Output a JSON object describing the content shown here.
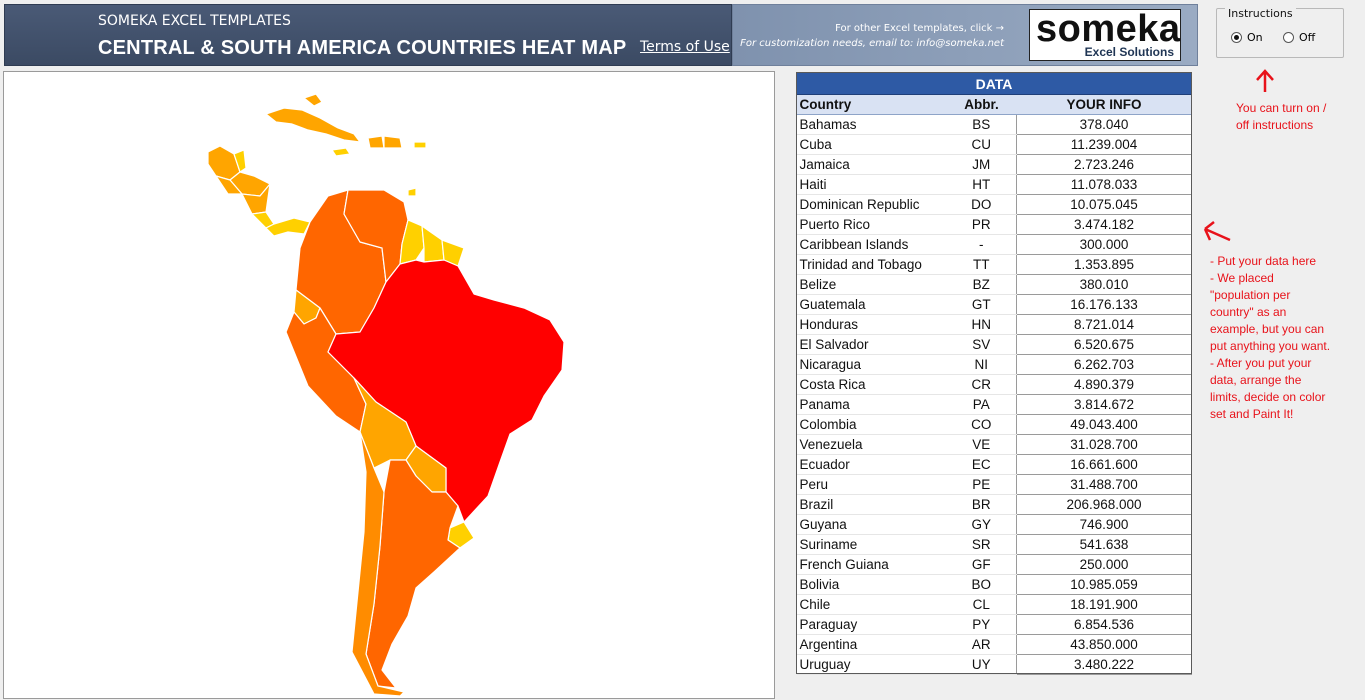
{
  "header": {
    "subtitle": "SOMEKA EXCEL TEMPLATES",
    "title": "CENTRAL & SOUTH AMERICA COUNTRIES HEAT MAP",
    "terms_label": "Terms of Use",
    "promo_line1": "For other Excel templates, click →",
    "promo_line2": "For customization needs, email to: info@someka.net",
    "logo_word": "someka",
    "logo_sub": "Excel Solutions"
  },
  "instructions": {
    "legend": "Instructions",
    "on_label": "On",
    "off_label": "Off",
    "selected": "On"
  },
  "notes": {
    "toggle_note_line1": "You can turn on /",
    "toggle_note_line2": "off instructions",
    "data_note_lines": [
      "- Put your data here",
      "- We placed",
      "\"population per",
      "country\" as an",
      "example, but you can",
      "put anything you want.",
      "- After you put your",
      "data, arrange the",
      "limits, decide on color",
      "set and Paint It!"
    ]
  },
  "table": {
    "title": "DATA",
    "headers": {
      "country": "Country",
      "abbr": "Abbr.",
      "info": "YOUR INFO"
    },
    "rows": [
      {
        "country": "Bahamas",
        "abbr": "BS",
        "info": "378.040"
      },
      {
        "country": "Cuba",
        "abbr": "CU",
        "info": "11.239.004"
      },
      {
        "country": "Jamaica",
        "abbr": "JM",
        "info": "2.723.246"
      },
      {
        "country": "Haiti",
        "abbr": "HT",
        "info": "11.078.033"
      },
      {
        "country": "Dominican Republic",
        "abbr": "DO",
        "info": "10.075.045"
      },
      {
        "country": "Puerto Rico",
        "abbr": "PR",
        "info": "3.474.182"
      },
      {
        "country": "Caribbean Islands",
        "abbr": "-",
        "info": "300.000"
      },
      {
        "country": "Trinidad and Tobago",
        "abbr": "TT",
        "info": "1.353.895"
      },
      {
        "country": "Belize",
        "abbr": "BZ",
        "info": "380.010"
      },
      {
        "country": "Guatemala",
        "abbr": "GT",
        "info": "16.176.133"
      },
      {
        "country": "Honduras",
        "abbr": "HN",
        "info": "8.721.014"
      },
      {
        "country": "El Salvador",
        "abbr": "SV",
        "info": "6.520.675"
      },
      {
        "country": "Nicaragua",
        "abbr": "NI",
        "info": "6.262.703"
      },
      {
        "country": "Costa Rica",
        "abbr": "CR",
        "info": "4.890.379"
      },
      {
        "country": "Panama",
        "abbr": "PA",
        "info": "3.814.672"
      },
      {
        "country": "Colombia",
        "abbr": "CO",
        "info": "49.043.400"
      },
      {
        "country": "Venezuela",
        "abbr": "VE",
        "info": "31.028.700"
      },
      {
        "country": "Ecuador",
        "abbr": "EC",
        "info": "16.661.600"
      },
      {
        "country": "Peru",
        "abbr": "PE",
        "info": "31.488.700"
      },
      {
        "country": "Brazil",
        "abbr": "BR",
        "info": "206.968.000"
      },
      {
        "country": "Guyana",
        "abbr": "GY",
        "info": "746.900"
      },
      {
        "country": "Suriname",
        "abbr": "SR",
        "info": "541.638"
      },
      {
        "country": "French Guiana",
        "abbr": "GF",
        "info": "250.000"
      },
      {
        "country": "Bolivia",
        "abbr": "BO",
        "info": "10.985.059"
      },
      {
        "country": "Chile",
        "abbr": "CL",
        "info": "18.191.900"
      },
      {
        "country": "Paraguay",
        "abbr": "PY",
        "info": "6.854.536"
      },
      {
        "country": "Argentina",
        "abbr": "AR",
        "info": "43.850.000"
      },
      {
        "country": "Uruguay",
        "abbr": "UY",
        "info": "3.480.222"
      }
    ]
  },
  "map": {
    "colors": {
      "highest": "#ff0000",
      "high": "#ff6600",
      "mid_high": "#ff8c00",
      "mid": "#ffa500",
      "low": "#ffd000"
    }
  }
}
